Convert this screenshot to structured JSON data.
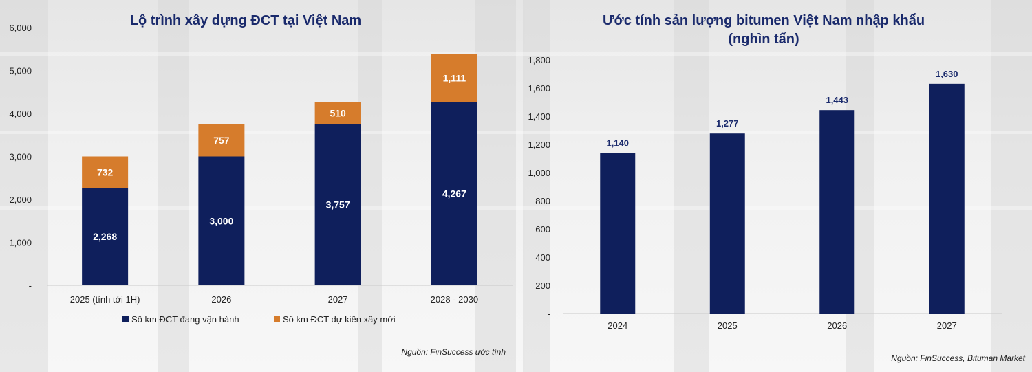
{
  "colors": {
    "navy": "#0f1f5c",
    "orange": "#d67c2c",
    "title": "#1a2a6c",
    "axis_text": "#222222"
  },
  "chart_data": [
    {
      "type": "bar",
      "stacked": true,
      "title": "Lộ trình xây dựng ĐCT tại Việt Nam",
      "categories": [
        "2025 (tính tới 1H)",
        "2026",
        "2027",
        "2028 - 2030"
      ],
      "series": [
        {
          "name": "Số km ĐCT đang vận hành",
          "color": "#0f1f5c",
          "values": [
            2268,
            3000,
            3757,
            4267
          ],
          "labels": [
            "2,268",
            "3,000",
            "3,757",
            "4,267"
          ]
        },
        {
          "name": "Số km ĐCT dự kiến xây mới",
          "color": "#d67c2c",
          "values": [
            732,
            757,
            510,
            1111
          ],
          "labels": [
            "732",
            "757",
            "510",
            "1,111"
          ]
        }
      ],
      "ylim": [
        0,
        6000
      ],
      "yticks": [
        0,
        1000,
        2000,
        3000,
        4000,
        5000,
        6000
      ],
      "ytick_labels": [
        "-",
        "1,000",
        "2,000",
        "3,000",
        "4,000",
        "5,000",
        "6,000"
      ],
      "legend_position": "bottom",
      "source": "Nguồn: FinSuccess ước tính",
      "grid": false
    },
    {
      "type": "bar",
      "title_line1": "Ước tính sản lượng bitumen Việt Nam nhập khẩu",
      "title_line2": "(nghìn tấn)",
      "categories": [
        "2024",
        "2025",
        "2026",
        "2027"
      ],
      "series": [
        {
          "color": "#0f1f5c",
          "values": [
            1140,
            1277,
            1443,
            1630
          ],
          "labels": [
            "1,140",
            "1,277",
            "1,443",
            "1,630"
          ]
        }
      ],
      "ylim": [
        0,
        1800
      ],
      "yticks": [
        0,
        200,
        400,
        600,
        800,
        1000,
        1200,
        1400,
        1600,
        1800
      ],
      "ytick_labels": [
        "-",
        "200",
        "400",
        "600",
        "800",
        "1,000",
        "1,200",
        "1,400",
        "1,600",
        "1,800"
      ],
      "source": "Nguồn: FinSuccess, Bituman Market",
      "grid": false
    }
  ]
}
